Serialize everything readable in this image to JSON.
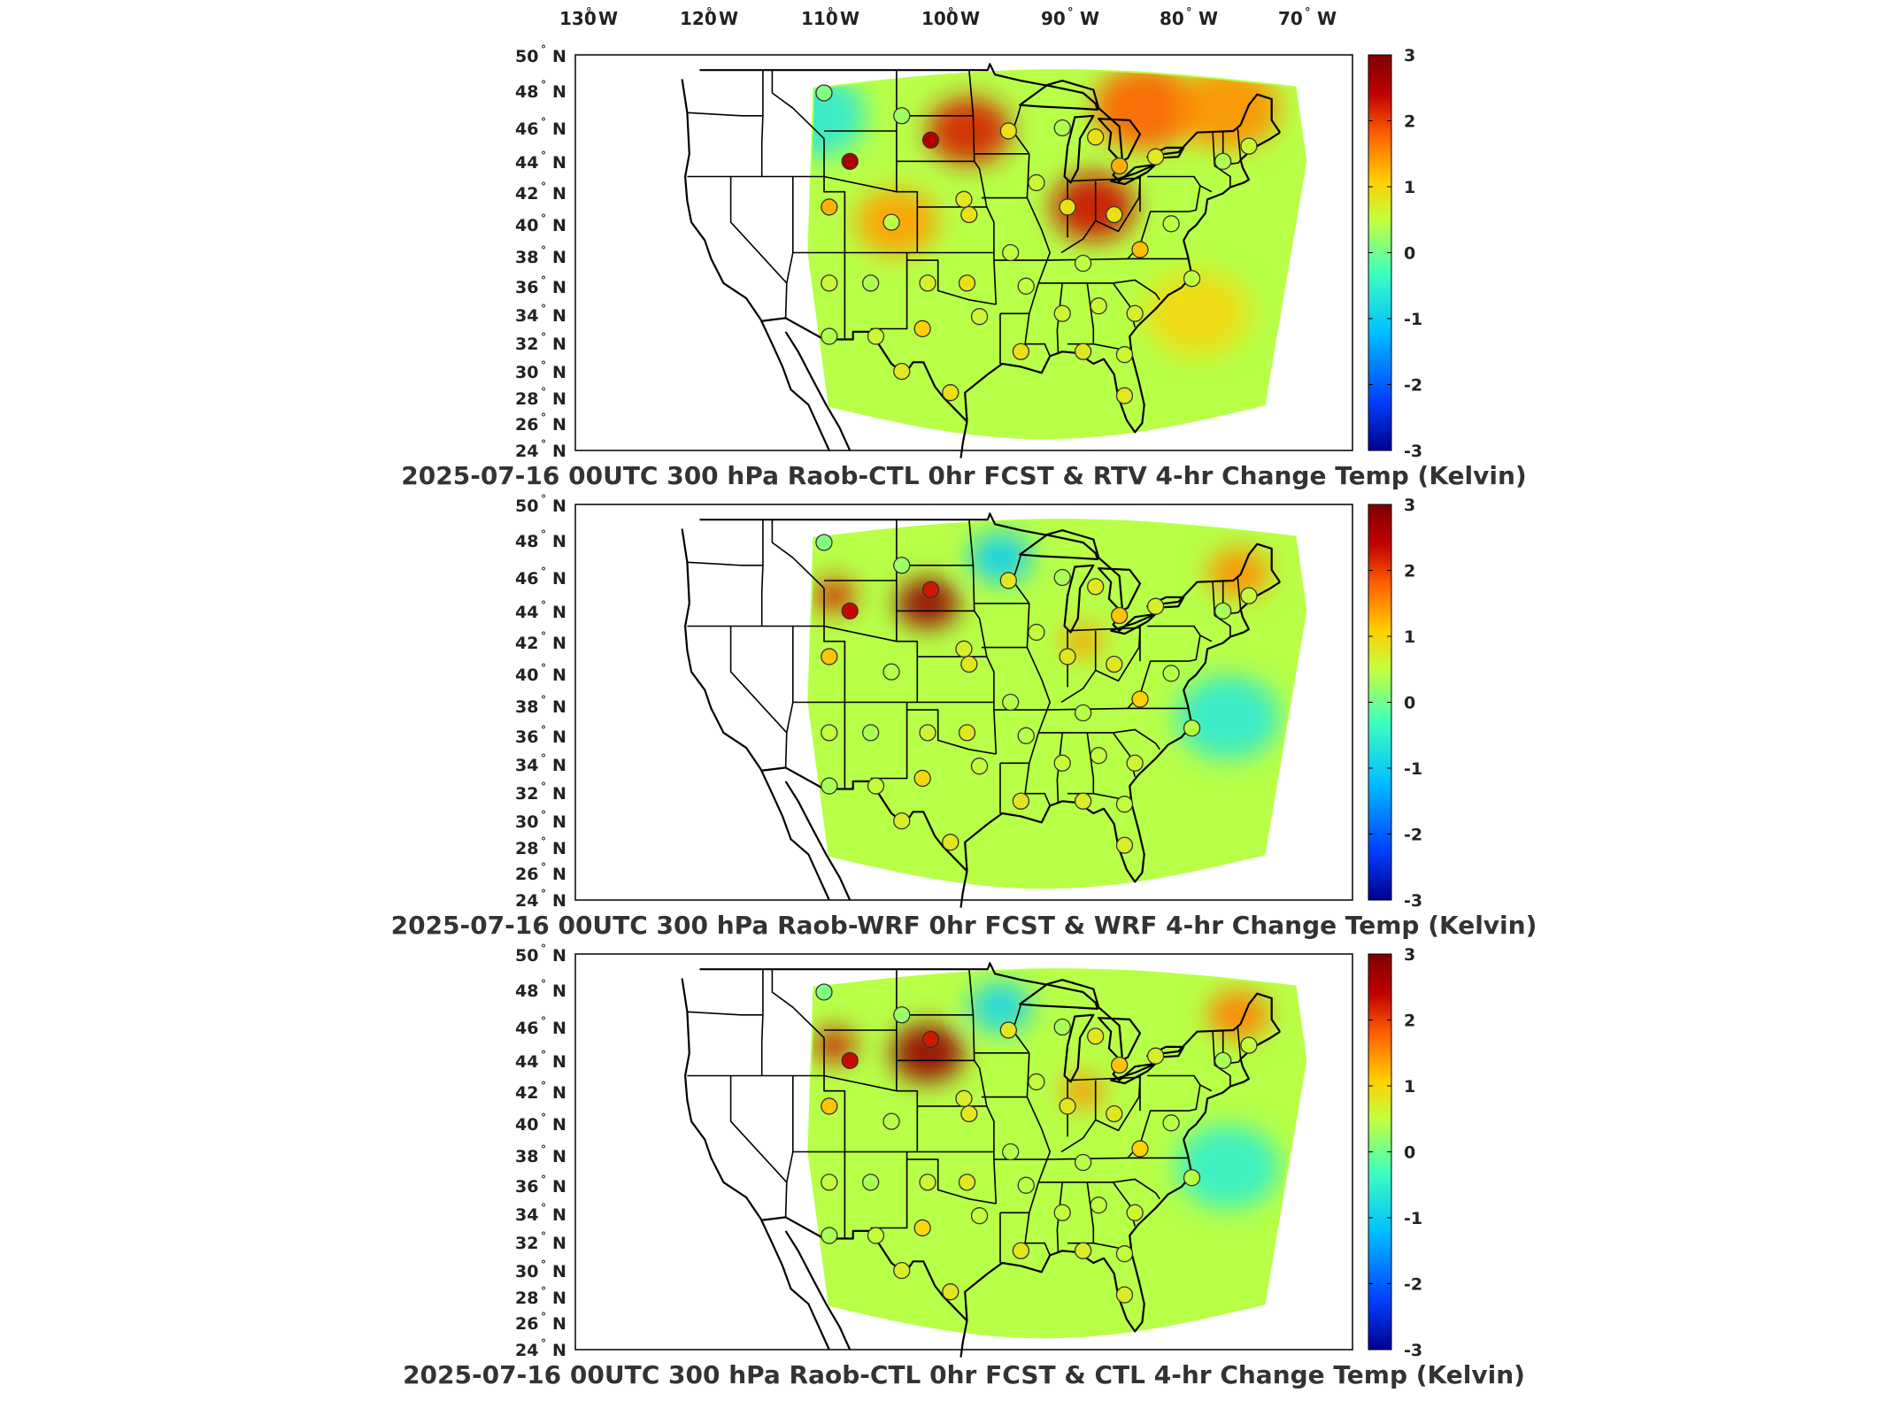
{
  "top_lon_ticks": [
    "130",
    "120",
    "110",
    "100",
    "90",
    "80",
    "70"
  ],
  "lon_suffix": "W",
  "lat_suffix": "N",
  "degree_mark": "°",
  "colorbar_ticks": [
    "3",
    "2",
    "1",
    "0",
    "-1",
    "-2",
    "-3"
  ],
  "colors": {
    "scale": [
      "#00008f",
      "#0040ff",
      "#00c0ff",
      "#40ffbf",
      "#c0ff40",
      "#ffd000",
      "#ff6000",
      "#c00000",
      "#800000"
    ],
    "map_lines": "#000000",
    "frame": "#000000"
  },
  "panels": [
    {
      "id": "panel-1",
      "title": "2025-07-16 00UTC 300 hPa Raob-CTL 0hr FCST & RTV 4-hr Change Temp (Kelvin)",
      "lat_ticks": [
        "50",
        "48",
        "46",
        "44",
        "42",
        "40",
        "38",
        "36",
        "34",
        "32",
        "30",
        "28",
        "26",
        "24"
      ]
    },
    {
      "id": "panel-2",
      "title": "2025-07-16 00UTC 300 hPa Raob-WRF 0hr FCST & WRF 4-hr Change Temp (Kelvin)",
      "lat_ticks": [
        "50",
        "48",
        "46",
        "44",
        "42",
        "40",
        "38",
        "36",
        "34",
        "32",
        "30",
        "28",
        "26",
        "24"
      ]
    },
    {
      "id": "panel-3",
      "title": "2025-07-16 00UTC 300 hPa Raob-CTL 0hr FCST & CTL 4-hr Change Temp (Kelvin)",
      "lat_ticks": [
        "50",
        "48",
        "46",
        "44",
        "42",
        "40",
        "38",
        "36",
        "34",
        "32",
        "30",
        "28",
        "26",
        "24"
      ]
    }
  ],
  "map_features": {
    "hotspots": {
      "panel-1": [
        {
          "lon": -97,
          "lat": 45,
          "val": 2.2,
          "r": 4
        },
        {
          "lon": -85,
          "lat": 40,
          "val": 2.3,
          "r": 4
        },
        {
          "lon": -80,
          "lat": 46.5,
          "val": 1.8,
          "r": 5
        },
        {
          "lon": -72,
          "lat": 46.5,
          "val": 1.5,
          "r": 5
        },
        {
          "lon": -104,
          "lat": 39,
          "val": 1.4,
          "r": 4
        },
        {
          "lon": -112,
          "lat": 46,
          "val": -0.6,
          "r": 5
        },
        {
          "lon": -75,
          "lat": 33,
          "val": 1.0,
          "r": 5
        }
      ],
      "panel-2": [
        {
          "lon": -101,
          "lat": 43.5,
          "val": 2.8,
          "r": 3
        },
        {
          "lon": -110,
          "lat": 44,
          "val": 2.2,
          "r": 2
        },
        {
          "lon": -86,
          "lat": 41,
          "val": 1.4,
          "r": 2
        },
        {
          "lon": -71,
          "lat": 45.5,
          "val": 1.5,
          "r": 3
        },
        {
          "lon": -94,
          "lat": 46.5,
          "val": -1.0,
          "r": 3
        },
        {
          "lon": -72,
          "lat": 36,
          "val": -0.6,
          "r": 5
        }
      ],
      "panel-3": [
        {
          "lon": -101,
          "lat": 43.5,
          "val": 2.8,
          "r": 3.5
        },
        {
          "lon": -110,
          "lat": 44,
          "val": 2.3,
          "r": 2
        },
        {
          "lon": -86,
          "lat": 41,
          "val": 1.5,
          "r": 2
        },
        {
          "lon": -71,
          "lat": 46,
          "val": 1.6,
          "r": 3
        },
        {
          "lon": -94,
          "lat": 46.5,
          "val": -0.9,
          "r": 3
        },
        {
          "lon": -72,
          "lat": 36,
          "val": -0.5,
          "r": 5
        }
      ]
    },
    "stations": [
      {
        "lon": -111.0,
        "lat": 47.5,
        "v": 0.1
      },
      {
        "lon": -108.5,
        "lat": 43.0,
        "v": 2.6
      },
      {
        "lon": -103.5,
        "lat": 46.0,
        "v": 0.3
      },
      {
        "lon": -100.7,
        "lat": 44.4,
        "v": 2.5
      },
      {
        "lon": -97.5,
        "lat": 40.5,
        "v": 0.8
      },
      {
        "lon": -93.2,
        "lat": 45.0,
        "v": 0.9
      },
      {
        "lon": -88.0,
        "lat": 45.2,
        "v": 0.4
      },
      {
        "lon": -84.8,
        "lat": 44.6,
        "v": 0.9
      },
      {
        "lon": -82.5,
        "lat": 42.7,
        "v": 1.3
      },
      {
        "lon": -79.0,
        "lat": 43.3,
        "v": 0.8
      },
      {
        "lon": -72.5,
        "lat": 43.0,
        "v": 0.4
      },
      {
        "lon": -70.0,
        "lat": 44.0,
        "v": 0.6
      },
      {
        "lon": -90.5,
        "lat": 41.6,
        "v": 0.6
      },
      {
        "lon": -87.5,
        "lat": 40.0,
        "v": 0.9
      },
      {
        "lon": -83.0,
        "lat": 39.5,
        "v": 0.9
      },
      {
        "lon": -77.5,
        "lat": 38.9,
        "v": 0.5
      },
      {
        "lon": -110.5,
        "lat": 40.0,
        "v": 1.3
      },
      {
        "lon": -104.5,
        "lat": 39.0,
        "v": 0.5
      },
      {
        "lon": -97.0,
        "lat": 39.5,
        "v": 0.9
      },
      {
        "lon": -93.0,
        "lat": 37.0,
        "v": 0.5
      },
      {
        "lon": -86.0,
        "lat": 36.3,
        "v": 0.5
      },
      {
        "lon": -80.5,
        "lat": 37.2,
        "v": 1.2
      },
      {
        "lon": -75.5,
        "lat": 35.3,
        "v": 0.5
      },
      {
        "lon": -110.5,
        "lat": 35.0,
        "v": 0.6
      },
      {
        "lon": -106.5,
        "lat": 35.0,
        "v": 0.4
      },
      {
        "lon": -101.0,
        "lat": 35.0,
        "v": 0.7
      },
      {
        "lon": -97.2,
        "lat": 35.0,
        "v": 0.9
      },
      {
        "lon": -91.5,
        "lat": 34.8,
        "v": 0.5
      },
      {
        "lon": -88.0,
        "lat": 33.0,
        "v": 0.6
      },
      {
        "lon": -84.5,
        "lat": 33.5,
        "v": 0.6
      },
      {
        "lon": -81.0,
        "lat": 33.0,
        "v": 0.7
      },
      {
        "lon": -110.5,
        "lat": 31.5,
        "v": 0.4
      },
      {
        "lon": -106.0,
        "lat": 31.5,
        "v": 0.6
      },
      {
        "lon": -101.5,
        "lat": 32.0,
        "v": 1.1
      },
      {
        "lon": -96.0,
        "lat": 32.8,
        "v": 0.6
      },
      {
        "lon": -92.0,
        "lat": 30.5,
        "v": 0.9
      },
      {
        "lon": -86.0,
        "lat": 30.5,
        "v": 0.8
      },
      {
        "lon": -82.0,
        "lat": 30.3,
        "v": 0.6
      },
      {
        "lon": -98.8,
        "lat": 27.8,
        "v": 0.9
      },
      {
        "lon": -103.5,
        "lat": 29.2,
        "v": 0.8
      },
      {
        "lon": -82.0,
        "lat": 27.6,
        "v": 0.8
      }
    ]
  }
}
